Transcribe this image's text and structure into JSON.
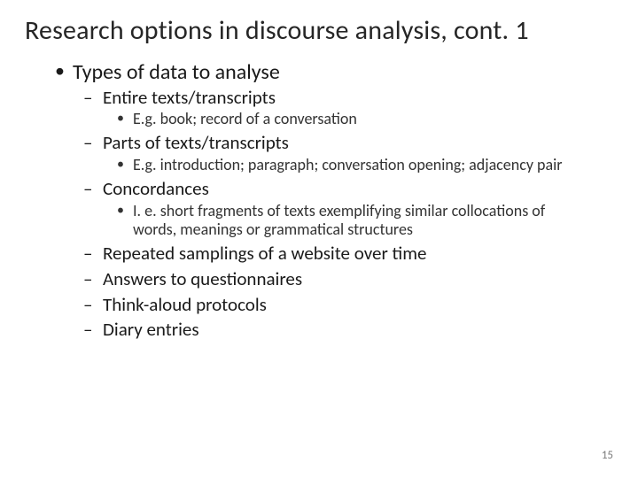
{
  "slide": {
    "title": "Research options in discourse analysis, cont. 1",
    "page_number": "15",
    "background_color": "#ffffff",
    "title_color": "#262626",
    "text_color": "#1a1a1a",
    "subtext_color": "#333333",
    "title_fontsize": 30,
    "lvl1_fontsize": 24,
    "lvl2_fontsize": 21,
    "lvl3_fontsize": 18,
    "bullets": {
      "lvl1": [
        {
          "text": "Types of data to analyse",
          "lvl2": [
            {
              "text": "Entire texts/transcripts",
              "lvl3": [
                {
                  "text": "E.g. book; record of a conversation"
                }
              ]
            },
            {
              "text": "Parts of texts/transcripts",
              "lvl3": [
                {
                  "text": "E.g. introduction; paragraph; conversation opening; adjacency pair"
                }
              ]
            },
            {
              "text": "Concordances",
              "lvl3": [
                {
                  "text": "I. e. short fragments of texts exemplifying similar collocations of words, meanings or grammatical structures"
                }
              ]
            },
            {
              "text": "Repeated samplings of a website over time",
              "lvl3": []
            },
            {
              "text": "Answers to questionnaires",
              "lvl3": []
            },
            {
              "text": "Think-aloud protocols",
              "lvl3": []
            },
            {
              "text": "Diary entries",
              "lvl3": []
            }
          ]
        }
      ]
    }
  }
}
